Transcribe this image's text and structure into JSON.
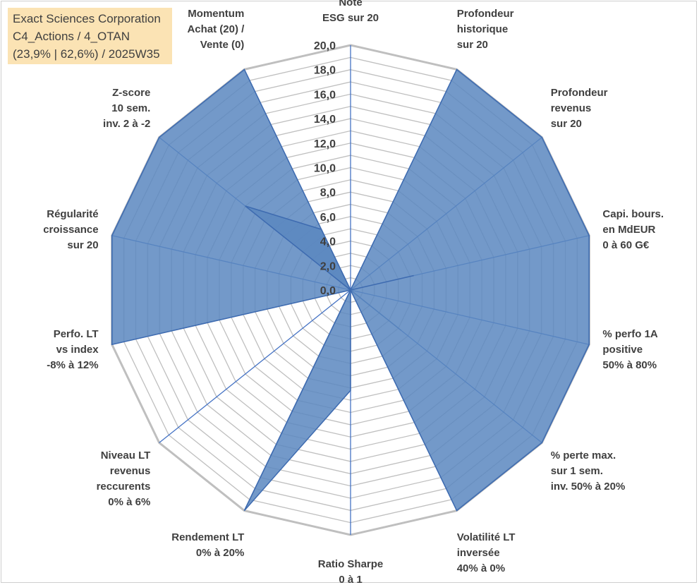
{
  "info_box": {
    "line1": "Exact Sciences Corporation",
    "line2": "C4_Actions / 4_OTAN",
    "line3": "(23,9% | 62,6%) / 2025W35"
  },
  "chart_data": {
    "type": "radar",
    "title": "",
    "rmin": 0,
    "rmax": 20,
    "tick_step": 1,
    "tick_labels": [
      "0,0",
      "2,0",
      "4,0",
      "6,0",
      "8,0",
      "10,0",
      "12,0",
      "14,0",
      "16,0",
      "18,0",
      "20,0"
    ],
    "grid": true,
    "axes": [
      [
        "Note",
        "ESG sur 20"
      ],
      [
        "Profondeur",
        "historique",
        "sur 20"
      ],
      [
        "Profondeur",
        "revenus",
        "sur 20"
      ],
      [
        "Capi. bours.",
        "en MdEUR",
        "0 à 60 G€"
      ],
      [
        "% perfo 1A",
        "positive",
        "50% à 80%"
      ],
      [
        "% perte max.",
        "sur 1 sem.",
        "inv. 50% à 20%"
      ],
      [
        "Volatilité LT",
        "inversée",
        "40% à 0%"
      ],
      [
        "Ratio Sharpe",
        "0 à 1"
      ],
      [
        "Rendement LT",
        "0% à 20%"
      ],
      [
        "Niveau LT",
        "revenus",
        "reccurents",
        "0% à 6%"
      ],
      [
        "Perfo. LT",
        "vs index",
        "-8% à 12%"
      ],
      [
        "Régularité",
        "croissance",
        "sur 20"
      ],
      [
        "Z-score",
        "10 sem.",
        "inv. 2 à -2"
      ],
      [
        "Momentum",
        "Achat (20) /",
        "Vente (0)"
      ]
    ],
    "series": [
      {
        "values": [
          0,
          0,
          0,
          0,
          0,
          5.3,
          0,
          0,
          0,
          0,
          0,
          0,
          0,
          0
        ]
      },
      {
        "values": [
          0,
          20,
          20,
          20,
          20,
          20,
          20,
          0,
          20,
          0,
          20,
          20,
          20,
          20
        ]
      },
      {
        "values": [
          0,
          0,
          0,
          5.3,
          0,
          0,
          0,
          8.2,
          20,
          0,
          0,
          0,
          11.0,
          5.5
        ]
      }
    ],
    "colors": {
      "ring": "#bfbfbf",
      "spoke": "#4472c4",
      "fill": "#5b87c0",
      "fill_stroke": "#3e6bb0",
      "text": "#404040"
    }
  }
}
